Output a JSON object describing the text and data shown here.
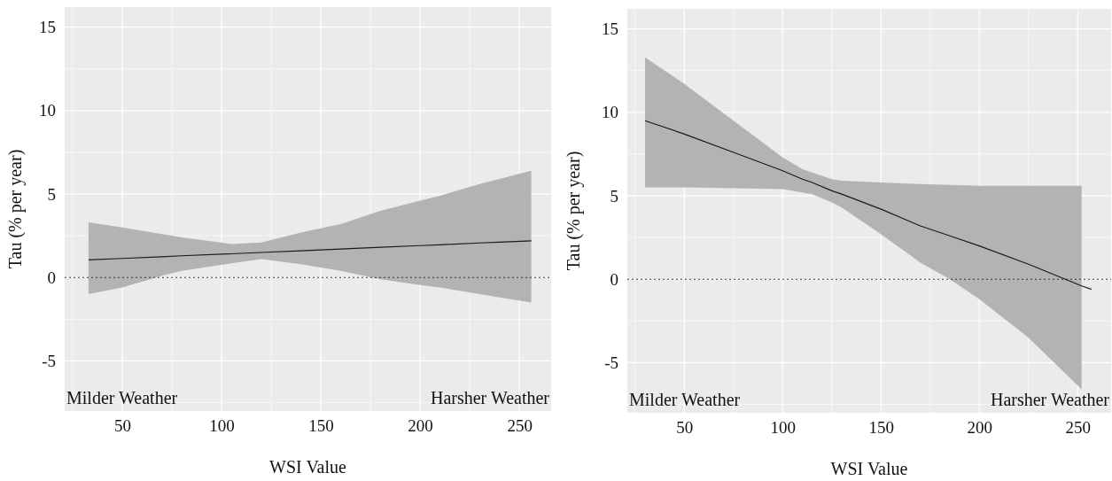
{
  "chart_data": [
    {
      "type": "line",
      "xlabel": "WSI Value",
      "ylabel": "Tau (% per year)",
      "xlim": [
        21,
        266
      ],
      "ylim": [
        -8,
        16.2
      ],
      "xticks": [
        50,
        100,
        150,
        200,
        250
      ],
      "yticks": [
        -5,
        0,
        5,
        10,
        15
      ],
      "grid": true,
      "marker": "none",
      "line_style": "solid",
      "annotations": [
        "Milder Weather",
        "Harsher Weather"
      ],
      "ref_lines": [
        {
          "axis": "y",
          "value": 0,
          "color": "#333333",
          "line_style": "dotted"
        }
      ],
      "series": [
        {
          "color": "#1a1a1a",
          "x": [
            33,
            50,
            70,
            80,
            105,
            120,
            140,
            160,
            170,
            180,
            200,
            210,
            230,
            240,
            256
          ],
          "values": [
            1.05,
            1.14,
            1.24,
            1.3,
            1.42,
            1.5,
            1.6,
            1.7,
            1.76,
            1.81,
            1.91,
            1.96,
            2.07,
            2.12,
            2.2
          ],
          "lower": [
            -1.0,
            -0.6,
            0.1,
            0.4,
            0.85,
            1.1,
            0.8,
            0.4,
            0.15,
            -0.1,
            -0.45,
            -0.6,
            -1.0,
            -1.2,
            -1.5
          ],
          "upper": [
            3.3,
            3.0,
            2.6,
            2.4,
            2.0,
            2.1,
            2.7,
            3.2,
            3.6,
            4.0,
            4.6,
            4.9,
            5.6,
            5.9,
            6.4
          ]
        }
      ]
    },
    {
      "type": "line",
      "xlabel": "WSI Value",
      "ylabel": "Tau (% per year)",
      "xlim": [
        21,
        267
      ],
      "ylim": [
        -8,
        16.2
      ],
      "xticks": [
        50,
        100,
        150,
        200,
        250
      ],
      "yticks": [
        -5,
        0,
        5,
        10,
        15
      ],
      "grid": true,
      "marker": "none",
      "line_style": "solid",
      "annotations": [
        "Milder Weather",
        "Harsher Weather"
      ],
      "ref_lines": [
        {
          "axis": "y",
          "value": 0,
          "color": "#333333",
          "line_style": "dotted"
        }
      ],
      "series": [
        {
          "color": "#1a1a1a",
          "x": [
            30,
            50,
            75,
            100,
            110,
            115,
            125,
            130,
            150,
            170,
            185,
            200,
            225,
            252,
            257
          ],
          "values": [
            9.5,
            8.7,
            7.6,
            6.5,
            6.0,
            5.8,
            5.3,
            5.1,
            4.2,
            3.2,
            2.6,
            2.0,
            0.9,
            -0.4,
            -0.6
          ],
          "lower": [
            5.5,
            5.5,
            5.45,
            5.4,
            5.2,
            5.1,
            4.6,
            4.3,
            2.7,
            1.0,
            0.0,
            -1.2,
            -3.5,
            -6.6,
            null
          ],
          "upper": [
            13.3,
            11.7,
            9.5,
            7.3,
            6.6,
            6.4,
            6.0,
            5.9,
            5.8,
            5.7,
            5.65,
            5.6,
            5.6,
            5.6,
            null
          ]
        }
      ]
    }
  ]
}
